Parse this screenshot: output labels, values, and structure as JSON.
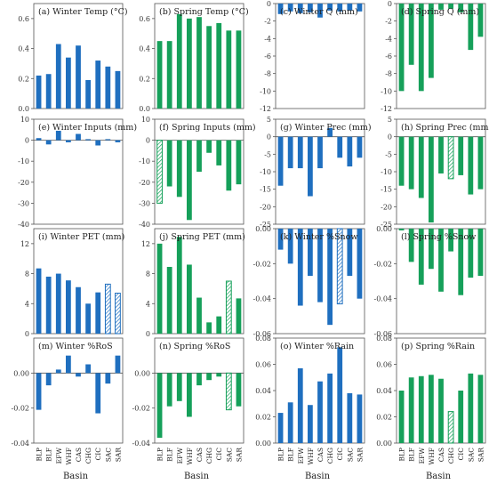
{
  "colors": {
    "winter": "#1f6fbf",
    "spring": "#16a05a"
  },
  "chart_data": [
    {
      "type": "bar",
      "title": "(a) Winter Temp (°C)",
      "season": "winter",
      "ylim": [
        0,
        0.7
      ],
      "yticks": [
        "0.0",
        "0.2",
        "0.4",
        "0.6"
      ],
      "categories": [
        "BLP",
        "BLF",
        "EFW",
        "WHF",
        "CAS",
        "CHG",
        "CIC",
        "SAC",
        "SAR"
      ],
      "values": [
        0.22,
        0.23,
        0.43,
        0.34,
        0.42,
        0.19,
        0.32,
        0.28,
        0.25
      ],
      "hatched": []
    },
    {
      "type": "bar",
      "title": "(b) Spring Temp (°C)",
      "season": "spring",
      "ylim": [
        0,
        0.7
      ],
      "yticks": [
        "0.0",
        "0.2",
        "0.4",
        "0.6"
      ],
      "categories": [
        "BLP",
        "BLF",
        "EFW",
        "WHF",
        "CAS",
        "CHG",
        "CIC",
        "SAC",
        "SAR"
      ],
      "values": [
        0.45,
        0.45,
        0.63,
        0.6,
        0.61,
        0.55,
        0.57,
        0.52,
        0.52
      ],
      "hatched": []
    },
    {
      "type": "bar",
      "title": "(c) Winter Q (mm)",
      "season": "winter",
      "ylim": [
        -12,
        0
      ],
      "yticks": [
        "0",
        "-2",
        "-4",
        "-6",
        "-8",
        "-10",
        "-12"
      ],
      "categories": [
        "BLP",
        "BLF",
        "EFW",
        "WHF",
        "CAS",
        "CHG",
        "CIC",
        "SAC",
        "SAR"
      ],
      "values": [
        -1.2,
        -0.9,
        -1.1,
        -1.0,
        -1.6,
        -0.8,
        -0.9,
        -0.8,
        -0.9
      ],
      "hatched": []
    },
    {
      "type": "bar",
      "title": "(d) Spring Q (mm)",
      "season": "spring",
      "ylim": [
        -12,
        0
      ],
      "yticks": [
        "0",
        "-2",
        "-4",
        "-6",
        "-8",
        "-10",
        "-12"
      ],
      "categories": [
        "BLP",
        "BLF",
        "EFW",
        "WHF",
        "CAS",
        "CHG",
        "CIC",
        "SAC",
        "SAR"
      ],
      "values": [
        -10.0,
        -7.0,
        -10.0,
        -8.5,
        -0.7,
        -0.6,
        -1.0,
        -5.3,
        -3.8
      ],
      "hatched": []
    },
    {
      "type": "bar",
      "title": "(e) Winter Inputs (mm)",
      "season": "winter",
      "ylim": [
        -40,
        10
      ],
      "yticks": [
        "10",
        "0",
        "-10",
        "-20",
        "-30",
        "-40"
      ],
      "categories": [
        "BLP",
        "BLF",
        "EFW",
        "WHF",
        "CAS",
        "CHG",
        "CIC",
        "SAC",
        "SAR"
      ],
      "values": [
        1.0,
        -2.0,
        4.5,
        -1.0,
        3.0,
        0.5,
        -2.5,
        0.5,
        -1.0
      ],
      "hatched": []
    },
    {
      "type": "bar",
      "title": "(f) Spring Inputs (mm)",
      "season": "spring",
      "ylim": [
        -40,
        10
      ],
      "yticks": [
        "10",
        "0",
        "-10",
        "-20",
        "-30",
        "-40"
      ],
      "categories": [
        "BLP",
        "BLF",
        "EFW",
        "WHF",
        "CAS",
        "CHG",
        "CIC",
        "SAC",
        "SAR"
      ],
      "values": [
        -30.0,
        -22.0,
        -27.0,
        -38.0,
        -15.0,
        -6.0,
        -12.0,
        -24.0,
        -21.0
      ],
      "hatched": [
        0
      ]
    },
    {
      "type": "bar",
      "title": "(g) Winter Prec (mm)",
      "season": "winter",
      "ylim": [
        -25,
        5
      ],
      "yticks": [
        "5",
        "0",
        "-5",
        "-10",
        "-15",
        "-20",
        "-25"
      ],
      "categories": [
        "BLP",
        "BLF",
        "EFW",
        "WHF",
        "CAS",
        "CHG",
        "CIC",
        "SAC",
        "SAR"
      ],
      "values": [
        -14.0,
        -9.0,
        -9.0,
        -17.0,
        -9.0,
        2.5,
        -6.0,
        -8.5,
        -6.0
      ],
      "hatched": []
    },
    {
      "type": "bar",
      "title": "(h) Spring Prec (mm)",
      "season": "spring",
      "ylim": [
        -25,
        5
      ],
      "yticks": [
        "5",
        "0",
        "-5",
        "-10",
        "-15",
        "-20",
        "-25"
      ],
      "categories": [
        "BLP",
        "BLF",
        "EFW",
        "WHF",
        "CAS",
        "CHG",
        "CIC",
        "SAC",
        "SAR"
      ],
      "values": [
        -14.0,
        -15.0,
        -17.5,
        -24.5,
        -10.5,
        -12.0,
        -11.0,
        -16.5,
        -15.0
      ],
      "hatched": [
        5
      ]
    },
    {
      "type": "bar",
      "title": "(i) Winter PET (mm)",
      "season": "winter",
      "ylim": [
        0,
        14
      ],
      "yticks": [
        "0",
        "4",
        "8",
        "12"
      ],
      "categories": [
        "BLP",
        "BLF",
        "EFW",
        "WHF",
        "CAS",
        "CHG",
        "CIC",
        "SAC",
        "SAR"
      ],
      "values": [
        8.7,
        7.6,
        8.0,
        7.1,
        6.2,
        4.0,
        5.5,
        6.6,
        5.4
      ],
      "hatched": [
        7,
        8
      ]
    },
    {
      "type": "bar",
      "title": "(j) Spring PET (mm)",
      "season": "spring",
      "ylim": [
        0,
        14
      ],
      "yticks": [
        "0",
        "4",
        "8",
        "12"
      ],
      "categories": [
        "BLP",
        "BLF",
        "EFW",
        "WHF",
        "CAS",
        "CHG",
        "CIC",
        "SAC",
        "SAR"
      ],
      "values": [
        12.0,
        8.9,
        12.9,
        9.2,
        4.8,
        1.5,
        2.3,
        7.0,
        4.7
      ],
      "hatched": [
        7
      ]
    },
    {
      "type": "bar",
      "title": "(k) Winter %Snow",
      "season": "winter",
      "ylim": [
        -0.06,
        0.0
      ],
      "yticks": [
        "0.00",
        "-0.02",
        "-0.04",
        "-0.06"
      ],
      "categories": [
        "BLP",
        "BLF",
        "EFW",
        "WHF",
        "CAS",
        "CHG",
        "CIC",
        "SAC",
        "SAR"
      ],
      "values": [
        -0.012,
        -0.02,
        -0.044,
        -0.027,
        -0.042,
        -0.055,
        -0.043,
        -0.027,
        -0.04
      ],
      "hatched": [
        6
      ]
    },
    {
      "type": "bar",
      "title": "(l) Spring %Snow",
      "season": "spring",
      "ylim": [
        -0.06,
        0.0
      ],
      "yticks": [
        "0.00",
        "-0.02",
        "-0.04",
        "-0.06"
      ],
      "categories": [
        "BLP",
        "BLF",
        "EFW",
        "WHF",
        "CAS",
        "CHG",
        "CIC",
        "SAC",
        "SAR"
      ],
      "values": [
        -0.001,
        -0.019,
        -0.032,
        -0.023,
        -0.036,
        -0.013,
        -0.038,
        -0.028,
        -0.027
      ],
      "hatched": []
    },
    {
      "type": "bar",
      "title": "(m) Winter %RoS",
      "season": "winter",
      "ylim": [
        -0.04,
        0.02
      ],
      "yticks": [
        "0.00",
        "-0.02",
        "-0.04"
      ],
      "categories": [
        "BLP",
        "BLF",
        "EFW",
        "WHF",
        "CAS",
        "CHG",
        "CIC",
        "SAC",
        "SAR"
      ],
      "values": [
        -0.021,
        -0.007,
        0.002,
        0.01,
        -0.002,
        0.005,
        -0.023,
        -0.006,
        0.01
      ],
      "hatched": []
    },
    {
      "type": "bar",
      "title": "(n) Spring %RoS",
      "season": "spring",
      "ylim": [
        -0.04,
        0.02
      ],
      "yticks": [
        "0.00",
        "-0.02",
        "-0.04"
      ],
      "categories": [
        "BLP",
        "BLF",
        "EFW",
        "WHF",
        "CAS",
        "CHG",
        "CIC",
        "SAC",
        "SAR"
      ],
      "values": [
        -0.037,
        -0.019,
        -0.016,
        -0.025,
        -0.007,
        -0.004,
        -0.002,
        -0.021,
        -0.019
      ],
      "hatched": [
        7
      ]
    },
    {
      "type": "bar",
      "title": "(o) Winter %Rain",
      "season": "winter",
      "ylim": [
        0,
        0.08
      ],
      "yticks": [
        "0.00",
        "0.02",
        "0.04",
        "0.06",
        "0.08"
      ],
      "categories": [
        "BLP",
        "BLF",
        "EFW",
        "WHF",
        "CAS",
        "CHG",
        "CIC",
        "SAC",
        "SAR"
      ],
      "values": [
        0.023,
        0.031,
        0.057,
        0.029,
        0.047,
        0.053,
        0.073,
        0.038,
        0.037
      ],
      "hatched": []
    },
    {
      "type": "bar",
      "title": "(p) Spring %Rain",
      "season": "spring",
      "ylim": [
        0,
        0.08
      ],
      "yticks": [
        "0.00",
        "0.02",
        "0.04",
        "0.06",
        "0.08"
      ],
      "categories": [
        "BLP",
        "BLF",
        "EFW",
        "WHF",
        "CAS",
        "CHG",
        "CIC",
        "SAC",
        "SAR"
      ],
      "values": [
        0.04,
        0.05,
        0.051,
        0.052,
        0.049,
        0.024,
        0.04,
        0.053,
        0.052
      ],
      "hatched": [
        5
      ]
    }
  ],
  "xlabel": "Basin"
}
